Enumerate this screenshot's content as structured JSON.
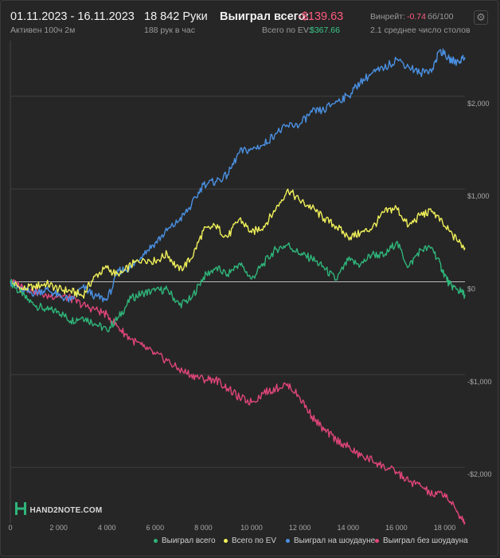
{
  "header": {
    "date_range": "01.11.2023 - 16.11.2023",
    "active": "Активен 100ч 2м",
    "hands": "18 842 Руки",
    "hands_per_hour": "188 рук в час",
    "won_label": "Выиграл всего:",
    "won_value": "-$139.63",
    "ev_label": "Всего по EV:",
    "ev_value": "$367.66",
    "winrate_label": "Винрейт:",
    "winrate_value": "-0.74",
    "winrate_unit": "бб/100",
    "avg_tables": "2.1 среднее число столов",
    "settings_icon": "gear-icon"
  },
  "logo": {
    "text": "HAND2NOTE.COM"
  },
  "colors": {
    "won_total": "#2fb57a",
    "ev_total": "#f0f05a",
    "showdown": "#4a90e2",
    "non_showdown": "#e0457a"
  },
  "chart_data": {
    "type": "line",
    "x_ticks": [
      "0",
      "2 000",
      "4 000",
      "6 000",
      "8 000",
      "10 000",
      "12 000",
      "14 000",
      "16 000",
      "18 000"
    ],
    "y_ticks": [
      "$2,000",
      "$1,000",
      "$0",
      "-$1,000",
      "-$2,000"
    ],
    "xlim": [
      0,
      18842
    ],
    "ylim": [
      -2600,
      2600
    ],
    "grid": true,
    "legend_position": "bottom",
    "series": [
      {
        "name": "Выиграл всего",
        "color_key": "won_total",
        "points": [
          [
            0,
            0
          ],
          [
            500,
            -150
          ],
          [
            1000,
            -250
          ],
          [
            1500,
            -300
          ],
          [
            2000,
            -320
          ],
          [
            2500,
            -420
          ],
          [
            3000,
            -380
          ],
          [
            3500,
            -450
          ],
          [
            4000,
            -520
          ],
          [
            4500,
            -380
          ],
          [
            5000,
            -180
          ],
          [
            5500,
            -120
          ],
          [
            6000,
            -100
          ],
          [
            6500,
            -80
          ],
          [
            7000,
            -250
          ],
          [
            7500,
            -180
          ],
          [
            8000,
            50
          ],
          [
            8500,
            150
          ],
          [
            9000,
            80
          ],
          [
            9500,
            200
          ],
          [
            10000,
            30
          ],
          [
            10500,
            200
          ],
          [
            11000,
            350
          ],
          [
            11500,
            400
          ],
          [
            12000,
            300
          ],
          [
            12500,
            250
          ],
          [
            13000,
            150
          ],
          [
            13500,
            20
          ],
          [
            14000,
            230
          ],
          [
            14500,
            180
          ],
          [
            15000,
            300
          ],
          [
            15500,
            280
          ],
          [
            16000,
            430
          ],
          [
            16500,
            160
          ],
          [
            17000,
            350
          ],
          [
            17500,
            360
          ],
          [
            17900,
            130
          ],
          [
            18200,
            -30
          ],
          [
            18500,
            -80
          ],
          [
            18842,
            -139.63
          ]
        ]
      },
      {
        "name": "Всего по EV",
        "color_key": "ev_total",
        "points": [
          [
            0,
            0
          ],
          [
            500,
            -80
          ],
          [
            1000,
            -50
          ],
          [
            1500,
            -20
          ],
          [
            2000,
            -80
          ],
          [
            2500,
            -100
          ],
          [
            3000,
            -150
          ],
          [
            3500,
            60
          ],
          [
            4000,
            150
          ],
          [
            4500,
            60
          ],
          [
            5000,
            180
          ],
          [
            5500,
            250
          ],
          [
            6000,
            220
          ],
          [
            6500,
            300
          ],
          [
            7000,
            120
          ],
          [
            7500,
            250
          ],
          [
            8000,
            550
          ],
          [
            8500,
            600
          ],
          [
            9000,
            480
          ],
          [
            9500,
            680
          ],
          [
            10000,
            530
          ],
          [
            10500,
            600
          ],
          [
            11000,
            780
          ],
          [
            11500,
            1000
          ],
          [
            12000,
            870
          ],
          [
            12500,
            800
          ],
          [
            13000,
            680
          ],
          [
            13500,
            600
          ],
          [
            14000,
            480
          ],
          [
            14500,
            520
          ],
          [
            15000,
            580
          ],
          [
            15500,
            750
          ],
          [
            16000,
            800
          ],
          [
            16500,
            600
          ],
          [
            17000,
            720
          ],
          [
            17500,
            760
          ],
          [
            18000,
            600
          ],
          [
            18500,
            450
          ],
          [
            18842,
            367.66
          ]
        ]
      },
      {
        "name": "Выиграл на шоудауне",
        "color_key": "showdown",
        "points": [
          [
            0,
            0
          ],
          [
            500,
            -100
          ],
          [
            1000,
            -120
          ],
          [
            1500,
            -80
          ],
          [
            2000,
            -150
          ],
          [
            2500,
            -200
          ],
          [
            3000,
            -60
          ],
          [
            3500,
            -150
          ],
          [
            4000,
            -200
          ],
          [
            4500,
            120
          ],
          [
            5000,
            150
          ],
          [
            5500,
            300
          ],
          [
            6000,
            420
          ],
          [
            6500,
            550
          ],
          [
            7000,
            660
          ],
          [
            7500,
            820
          ],
          [
            8000,
            1050
          ],
          [
            8500,
            1080
          ],
          [
            9000,
            1150
          ],
          [
            9500,
            1400
          ],
          [
            10000,
            1430
          ],
          [
            10500,
            1480
          ],
          [
            11000,
            1600
          ],
          [
            11500,
            1680
          ],
          [
            12000,
            1700
          ],
          [
            12500,
            1830
          ],
          [
            13000,
            1850
          ],
          [
            13500,
            1950
          ],
          [
            14000,
            2000
          ],
          [
            14500,
            2150
          ],
          [
            15000,
            2250
          ],
          [
            15500,
            2300
          ],
          [
            16000,
            2400
          ],
          [
            16500,
            2320
          ],
          [
            17000,
            2250
          ],
          [
            17500,
            2300
          ],
          [
            17800,
            2500
          ],
          [
            18200,
            2400
          ],
          [
            18500,
            2370
          ],
          [
            18842,
            2420
          ]
        ]
      },
      {
        "name": "Выиграл без шоудауна",
        "color_key": "non_showdown",
        "points": [
          [
            0,
            0
          ],
          [
            500,
            -50
          ],
          [
            1000,
            -100
          ],
          [
            1500,
            -150
          ],
          [
            2000,
            -150
          ],
          [
            2500,
            -180
          ],
          [
            3000,
            -250
          ],
          [
            3500,
            -300
          ],
          [
            4000,
            -350
          ],
          [
            4500,
            -500
          ],
          [
            5000,
            -620
          ],
          [
            5500,
            -700
          ],
          [
            6000,
            -780
          ],
          [
            6500,
            -850
          ],
          [
            7000,
            -950
          ],
          [
            7500,
            -1000
          ],
          [
            8000,
            -1050
          ],
          [
            8500,
            -1050
          ],
          [
            9000,
            -1150
          ],
          [
            9500,
            -1250
          ],
          [
            10000,
            -1300
          ],
          [
            10500,
            -1200
          ],
          [
            11000,
            -1150
          ],
          [
            11500,
            -1100
          ],
          [
            12000,
            -1250
          ],
          [
            12500,
            -1450
          ],
          [
            13000,
            -1600
          ],
          [
            13500,
            -1700
          ],
          [
            14000,
            -1780
          ],
          [
            14500,
            -1880
          ],
          [
            15000,
            -1920
          ],
          [
            15500,
            -2000
          ],
          [
            16000,
            -2050
          ],
          [
            16500,
            -2150
          ],
          [
            17000,
            -2200
          ],
          [
            17500,
            -2300
          ],
          [
            18000,
            -2280
          ],
          [
            18500,
            -2480
          ],
          [
            18842,
            -2590
          ]
        ]
      }
    ]
  }
}
